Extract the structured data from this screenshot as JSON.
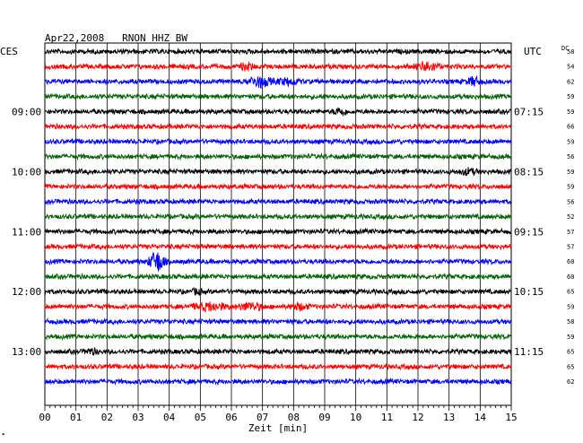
{
  "chart_data": {
    "type": "line",
    "title": "Apr22,2008   RNON HHZ BW",
    "left_tz_label": "CES",
    "right_tz_label": "UTC",
    "dc_label": "DC",
    "xlabel": "Zeit [min]",
    "xlim": [
      0,
      15
    ],
    "x_ticks": [
      "00",
      "01",
      "02",
      "03",
      "04",
      "05",
      "06",
      "07",
      "08",
      "09",
      "10",
      "11",
      "12",
      "13",
      "14",
      "15"
    ],
    "trace_interval_min": 15,
    "trace_count": 23,
    "left_hour_labels": [
      {
        "trace": 4,
        "label": "09:00"
      },
      {
        "trace": 8,
        "label": "10:00"
      },
      {
        "trace": 12,
        "label": "11:00"
      },
      {
        "trace": 16,
        "label": "12:00"
      },
      {
        "trace": 20,
        "label": "13:00"
      }
    ],
    "right_hour_labels": [
      {
        "trace": 4,
        "label": "07:15"
      },
      {
        "trace": 8,
        "label": "08:15"
      },
      {
        "trace": 12,
        "label": "09:15"
      },
      {
        "trace": 16,
        "label": "10:15"
      },
      {
        "trace": 20,
        "label": "11:15"
      }
    ],
    "dc_offsets": [
      "58",
      "54",
      "62",
      "59",
      "59",
      "66",
      "59",
      "56",
      "59",
      "59",
      "56",
      "52",
      "57",
      "57",
      "60",
      "60",
      "65",
      "59",
      "58",
      "59",
      "65",
      "65",
      "62"
    ],
    "series_colors": [
      "#000000",
      "#ff0000",
      "#0000ff",
      "#006400"
    ],
    "events": [
      {
        "trace": 1,
        "minute": 6.5,
        "amp": 4,
        "width": 0.3
      },
      {
        "trace": 1,
        "minute": 12.3,
        "amp": 5,
        "width": 0.5
      },
      {
        "trace": 2,
        "minute": 6.9,
        "amp": 6,
        "width": 0.5
      },
      {
        "trace": 2,
        "minute": 7.8,
        "amp": 3,
        "width": 0.6
      },
      {
        "trace": 2,
        "minute": 13.8,
        "amp": 5,
        "width": 0.3
      },
      {
        "trace": 4,
        "minute": 9.5,
        "amp": 4,
        "width": 0.3
      },
      {
        "trace": 8,
        "minute": 13.6,
        "amp": 3,
        "width": 0.4
      },
      {
        "trace": 14,
        "minute": 3.6,
        "amp": 12,
        "width": 0.35
      },
      {
        "trace": 17,
        "minute": 5.3,
        "amp": 4,
        "width": 0.8
      },
      {
        "trace": 17,
        "minute": 6.6,
        "amp": 4,
        "width": 0.6
      },
      {
        "trace": 17,
        "minute": 8.2,
        "amp": 3,
        "width": 0.4
      },
      {
        "trace": 16,
        "minute": 4.9,
        "amp": 3,
        "width": 0.2
      },
      {
        "trace": 20,
        "minute": 1.5,
        "amp": 3,
        "width": 0.3
      }
    ],
    "footer_mark": "▸"
  }
}
